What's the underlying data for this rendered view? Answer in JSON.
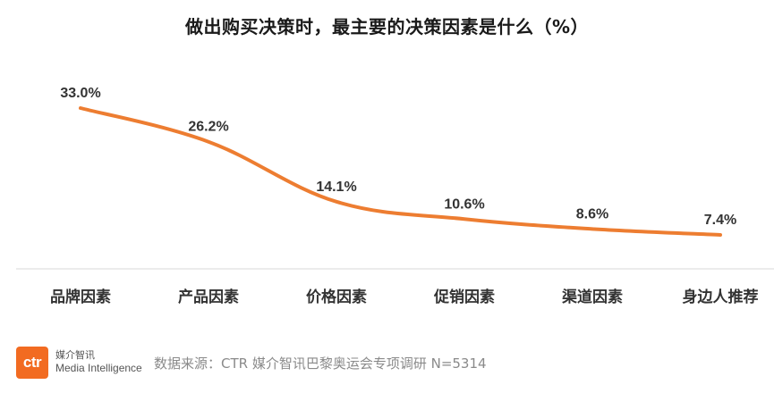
{
  "title": "做出购买决策时，最主要的决策因素是什么（%）",
  "chart_data": {
    "type": "line",
    "title": "做出购买决策时，最主要的决策因素是什么（%）",
    "categories": [
      "品牌因素",
      "产品因素",
      "价格因素",
      "促销因素",
      "渠道因素",
      "身边人推荐"
    ],
    "values": [
      33.0,
      26.2,
      14.1,
      10.6,
      8.6,
      7.4
    ],
    "labels": [
      "33.0%",
      "26.2%",
      "14.1%",
      "10.6%",
      "8.6%",
      "7.4%"
    ],
    "unit": "%",
    "line_color": "#ed7d31",
    "grid": false,
    "legend": "none"
  },
  "logo": {
    "mark": "ctr",
    "name_cn": "媒介智讯",
    "name_en": "Media Intelligence",
    "color": "#f26b21"
  },
  "source": "数据来源：CTR 媒介智讯巴黎奥运会专项调研 N=5314"
}
